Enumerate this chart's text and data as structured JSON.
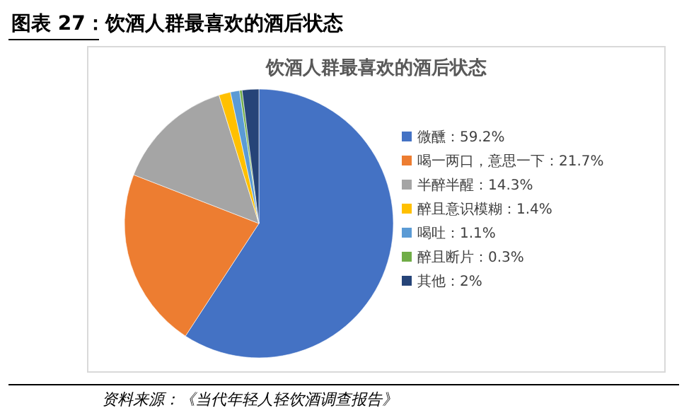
{
  "chart_data": {
    "type": "pie",
    "title": "图表 27：饮酒人群最喜欢的酒后状态",
    "subtitle": "饮酒人群最喜欢的酒后状态",
    "categories": [
      "微醺：59.2%",
      "喝一两口，意思一下：21.7%",
      "半醉半醒：14.3%",
      "醉且意识模糊：1.4%",
      "喝吐：1.1%",
      "醉且断片：0.3%",
      "其他：2%"
    ],
    "values": [
      59.2,
      21.7,
      14.3,
      1.4,
      1.1,
      0.3,
      2
    ],
    "colors": [
      "#4472c4",
      "#ed7d31",
      "#a5a5a5",
      "#ffc000",
      "#5b9bd5",
      "#70ad47",
      "#264478"
    ],
    "legend": "right",
    "annotations": [
      "资料来源：《当代年轻人轻饮酒调查报告》"
    ]
  }
}
